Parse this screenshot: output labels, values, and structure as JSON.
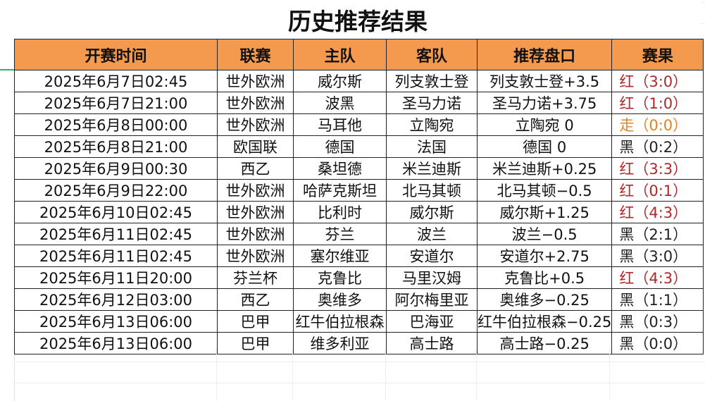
{
  "title": "历史推荐结果",
  "colors": {
    "header_bg": "#f39a4f",
    "red": "#b3262a",
    "orange": "#e8821e",
    "black": "#222222",
    "selection": "#3aa876"
  },
  "columns": [
    "开赛时间",
    "联赛",
    "主队",
    "客队",
    "推荐盘口",
    "赛果"
  ],
  "rows": [
    {
      "time": "2025年6月7日02:45",
      "league": "世外欧洲",
      "home": "威尔斯",
      "away": "列支敦士登",
      "line": "列支敦士登+3.5",
      "result": "红（3:0）",
      "result_color": "red"
    },
    {
      "time": "2025年6月7日21:00",
      "league": "世外欧洲",
      "home": "波黑",
      "away": "圣马力诺",
      "line": "圣马力诺+3.75",
      "result": "红（1:0）",
      "result_color": "red"
    },
    {
      "time": "2025年6月8日00:00",
      "league": "世外欧洲",
      "home": "马耳他",
      "away": "立陶宛",
      "line": "立陶宛 0",
      "result": "走（0:0）",
      "result_color": "orange"
    },
    {
      "time": "2025年6月8日21:00",
      "league": "欧国联",
      "home": "德国",
      "away": "法国",
      "line": "德国 0",
      "result": "黑（0:2）",
      "result_color": "black"
    },
    {
      "time": "2025年6月9日00:30",
      "league": "西乙",
      "home": "桑坦德",
      "away": "米兰迪斯",
      "line": "米兰迪斯+0.25",
      "result": "红（3:3）",
      "result_color": "red"
    },
    {
      "time": "2025年6月9日22:00",
      "league": "世外欧洲",
      "home": "哈萨克斯坦",
      "away": "北马其顿",
      "line": "北马其顿−0.5",
      "result": "红（0:1）",
      "result_color": "red"
    },
    {
      "time": "2025年6月10日02:45",
      "league": "世外欧洲",
      "home": "比利时",
      "away": "威尔斯",
      "line": "威尔斯+1.25",
      "result": "红（4:3）",
      "result_color": "red"
    },
    {
      "time": "2025年6月11日02:45",
      "league": "世外欧洲",
      "home": "芬兰",
      "away": "波兰",
      "line": "波兰−0.5",
      "result": "黑（2:1）",
      "result_color": "black"
    },
    {
      "time": "2025年6月11日02:45",
      "league": "世外欧洲",
      "home": "塞尔维亚",
      "away": "安道尔",
      "line": "安道尔+2.75",
      "result": "黑（3:0）",
      "result_color": "black"
    },
    {
      "time": "2025年6月11日20:00",
      "league": "芬兰杯",
      "home": "克鲁比",
      "away": "马里汉姆",
      "line": "克鲁比+0.5",
      "result": "红（4:3）",
      "result_color": "red"
    },
    {
      "time": "2025年6月12日03:00",
      "league": "西乙",
      "home": "奥维多",
      "away": "阿尔梅里亚",
      "line": "奥维多−0.25",
      "result": "黑（1:1）",
      "result_color": "black"
    },
    {
      "time": "2025年6月13日06:00",
      "league": "巴甲",
      "home": "红牛伯拉根森",
      "away": "巴海亚",
      "line": "红牛伯拉根森−0.25",
      "result": "黑（0:3）",
      "result_color": "black"
    },
    {
      "time": "2025年6月13日06:00",
      "league": "巴甲",
      "home": "维多利亚",
      "away": "高士路",
      "line": "高士路−0.25",
      "result": "黑（0:0）",
      "result_color": "black"
    }
  ]
}
